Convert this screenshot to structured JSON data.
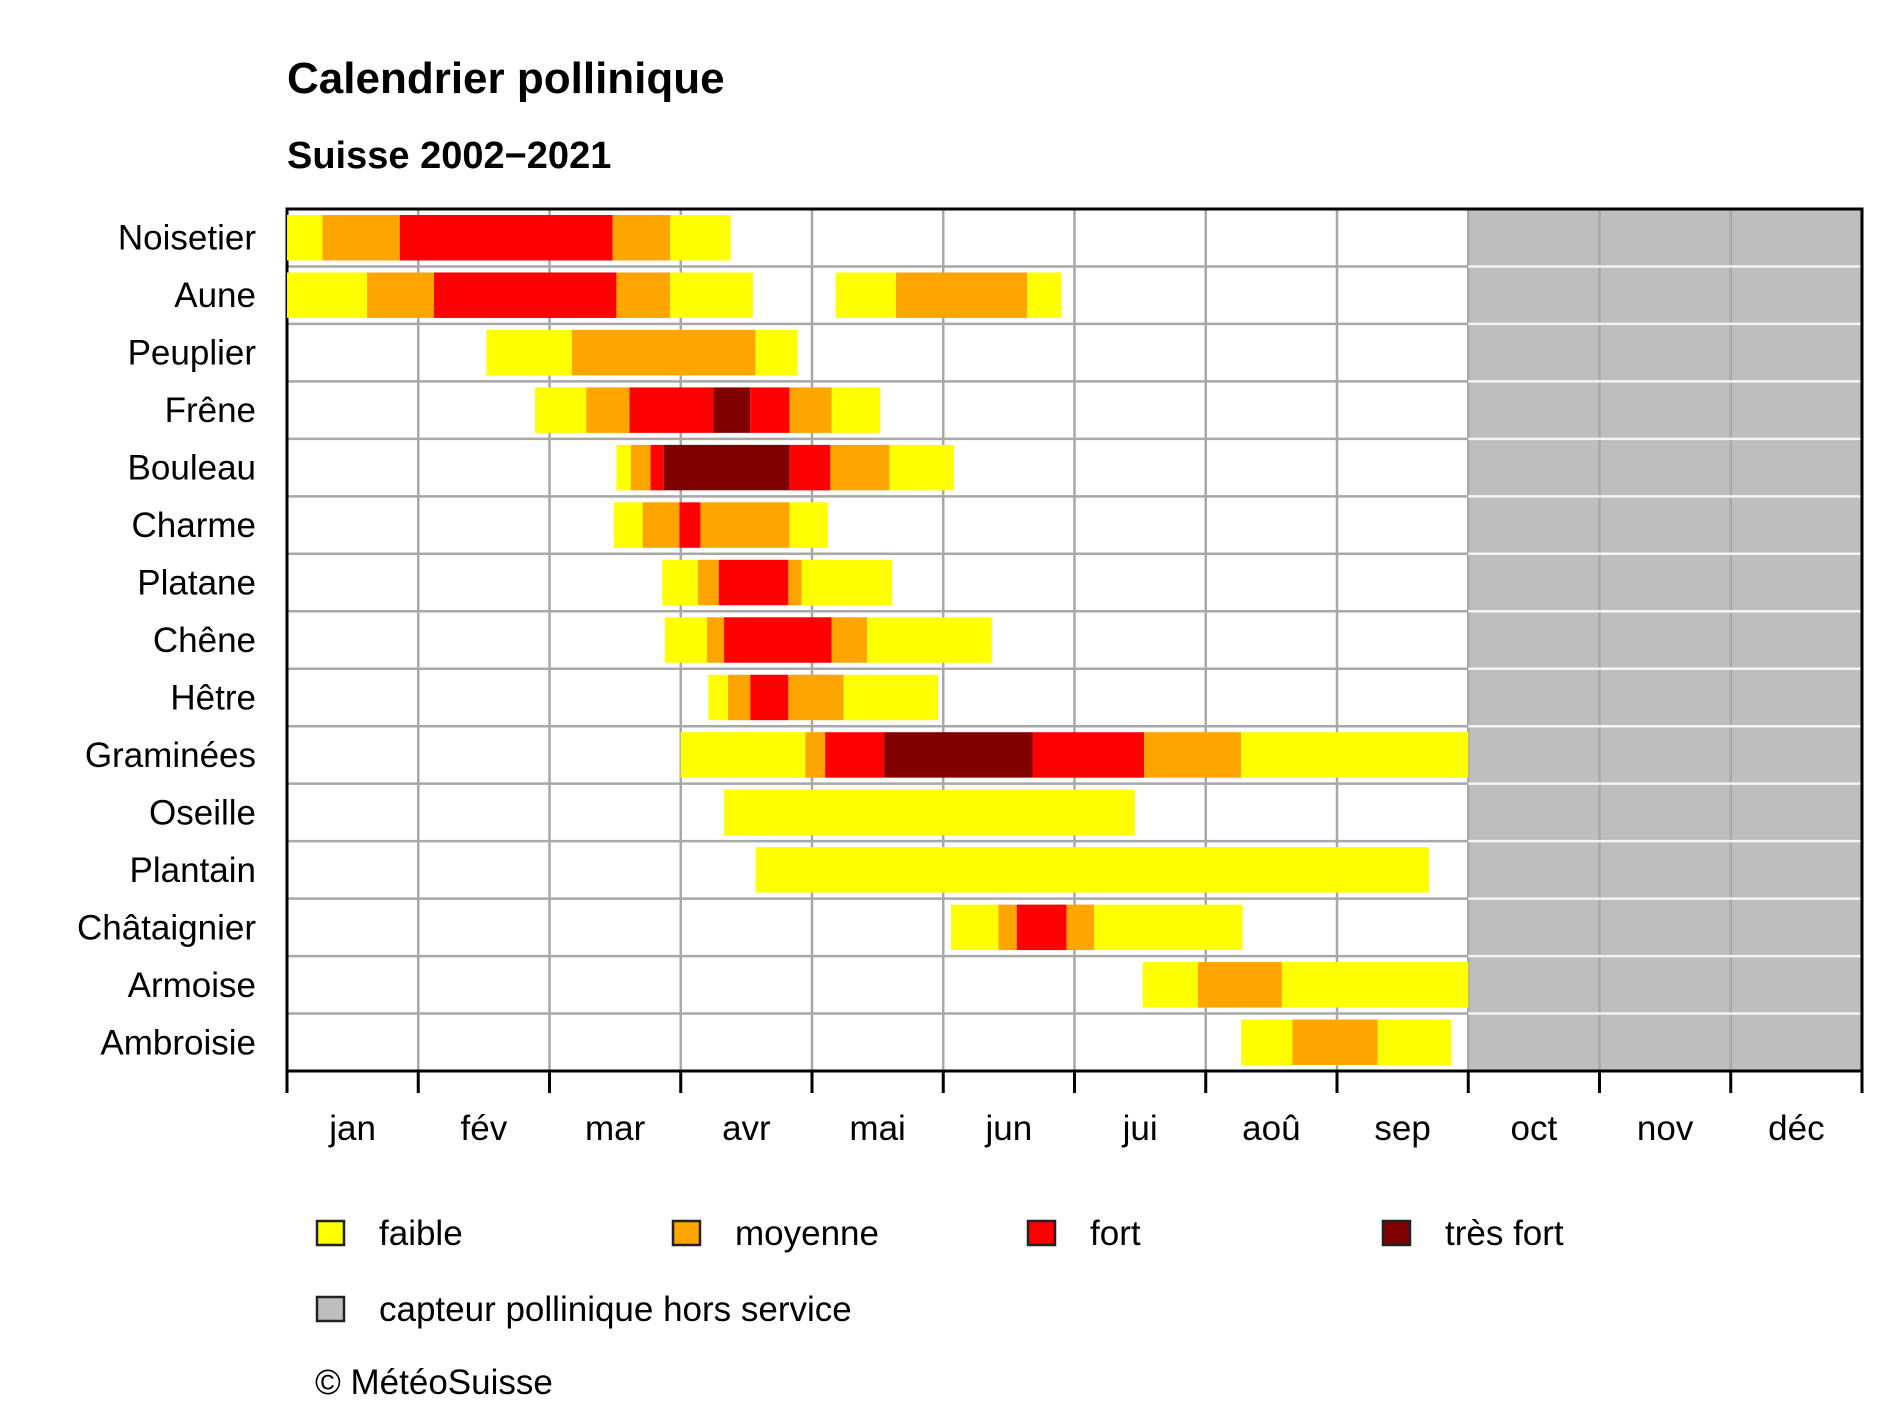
{
  "chart_data": {
    "type": "bar",
    "title": "Calendrier pollinique",
    "subtitle": "Suisse 2002−2021",
    "x_unit": "month",
    "xlim": [
      0,
      12
    ],
    "months": [
      "jan",
      "fév",
      "mar",
      "avr",
      "mai",
      "jun",
      "jui",
      "aoû",
      "sep",
      "oct",
      "nov",
      "déc"
    ],
    "grid": true,
    "out_of_service": {
      "from": 9.0,
      "to": 12.0
    },
    "levels": [
      {
        "key": "faible",
        "label": "faible",
        "color": "#FFFF00"
      },
      {
        "key": "moyenne",
        "label": "moyenne",
        "color": "#FFA500"
      },
      {
        "key": "fort",
        "label": "fort",
        "color": "#FF0000"
      },
      {
        "key": "tres_fort",
        "label": "très fort",
        "color": "#800000"
      },
      {
        "key": "hors_service",
        "label": "capteur pollinique hors service",
        "color": "#BEBEBE"
      }
    ],
    "species": [
      {
        "name": "Noisetier",
        "segments": [
          [
            0.0,
            0.27,
            "faible"
          ],
          [
            0.27,
            0.86,
            "moyenne"
          ],
          [
            0.86,
            2.48,
            "fort"
          ],
          [
            2.48,
            2.92,
            "moyenne"
          ],
          [
            2.92,
            3.38,
            "faible"
          ]
        ]
      },
      {
        "name": "Aune",
        "segments": [
          [
            0.0,
            0.61,
            "faible"
          ],
          [
            0.61,
            1.12,
            "moyenne"
          ],
          [
            1.12,
            2.51,
            "fort"
          ],
          [
            2.51,
            2.92,
            "moyenne"
          ],
          [
            2.92,
            3.55,
            "faible"
          ],
          [
            4.18,
            4.64,
            "faible"
          ],
          [
            4.64,
            5.64,
            "moyenne"
          ],
          [
            5.64,
            5.9,
            "faible"
          ]
        ]
      },
      {
        "name": "Peuplier",
        "segments": [
          [
            1.52,
            2.17,
            "faible"
          ],
          [
            2.17,
            3.57,
            "moyenne"
          ],
          [
            3.57,
            3.89,
            "faible"
          ]
        ]
      },
      {
        "name": "Frêne",
        "segments": [
          [
            1.89,
            2.28,
            "faible"
          ],
          [
            2.28,
            2.61,
            "moyenne"
          ],
          [
            2.61,
            3.25,
            "fort"
          ],
          [
            3.25,
            3.53,
            "tres_fort"
          ],
          [
            3.53,
            3.83,
            "fort"
          ],
          [
            3.83,
            4.15,
            "moyenne"
          ],
          [
            4.15,
            4.52,
            "faible"
          ]
        ]
      },
      {
        "name": "Bouleau",
        "segments": [
          [
            2.51,
            2.62,
            "faible"
          ],
          [
            2.62,
            2.77,
            "moyenne"
          ],
          [
            2.77,
            2.87,
            "fort"
          ],
          [
            2.87,
            3.83,
            "tres_fort"
          ],
          [
            3.83,
            4.14,
            "fort"
          ],
          [
            4.14,
            4.59,
            "moyenne"
          ],
          [
            4.59,
            5.08,
            "faible"
          ]
        ]
      },
      {
        "name": "Charme",
        "segments": [
          [
            2.49,
            2.71,
            "faible"
          ],
          [
            2.71,
            2.99,
            "moyenne"
          ],
          [
            2.99,
            3.15,
            "fort"
          ],
          [
            3.15,
            3.83,
            "moyenne"
          ],
          [
            3.83,
            4.12,
            "faible"
          ]
        ]
      },
      {
        "name": "Platane",
        "segments": [
          [
            2.86,
            3.13,
            "faible"
          ],
          [
            3.13,
            3.29,
            "moyenne"
          ],
          [
            3.29,
            3.82,
            "fort"
          ],
          [
            3.82,
            3.92,
            "moyenne"
          ],
          [
            3.92,
            4.61,
            "faible"
          ]
        ]
      },
      {
        "name": "Chêne",
        "segments": [
          [
            2.88,
            3.2,
            "faible"
          ],
          [
            3.2,
            3.33,
            "moyenne"
          ],
          [
            3.33,
            4.15,
            "fort"
          ],
          [
            4.15,
            4.42,
            "moyenne"
          ],
          [
            4.42,
            5.37,
            "faible"
          ]
        ]
      },
      {
        "name": "Hêtre",
        "segments": [
          [
            3.21,
            3.36,
            "faible"
          ],
          [
            3.36,
            3.53,
            "moyenne"
          ],
          [
            3.53,
            3.82,
            "fort"
          ],
          [
            3.82,
            4.24,
            "moyenne"
          ],
          [
            4.24,
            4.96,
            "faible"
          ]
        ]
      },
      {
        "name": "Graminées",
        "segments": [
          [
            3.0,
            3.95,
            "faible"
          ],
          [
            3.95,
            4.1,
            "moyenne"
          ],
          [
            4.1,
            4.55,
            "fort"
          ],
          [
            4.55,
            5.68,
            "tres_fort"
          ],
          [
            5.68,
            6.53,
            "fort"
          ],
          [
            6.53,
            7.27,
            "moyenne"
          ],
          [
            7.27,
            9.0,
            "faible"
          ]
        ]
      },
      {
        "name": "Oseille",
        "segments": [
          [
            3.33,
            6.46,
            "faible"
          ]
        ]
      },
      {
        "name": "Plantain",
        "segments": [
          [
            3.57,
            8.7,
            "faible"
          ]
        ]
      },
      {
        "name": "Châtaignier",
        "segments": [
          [
            5.06,
            5.42,
            "faible"
          ],
          [
            5.42,
            5.56,
            "moyenne"
          ],
          [
            5.56,
            5.94,
            "fort"
          ],
          [
            5.94,
            6.15,
            "moyenne"
          ],
          [
            6.15,
            7.28,
            "faible"
          ]
        ]
      },
      {
        "name": "Armoise",
        "segments": [
          [
            6.52,
            6.94,
            "faible"
          ],
          [
            6.94,
            7.58,
            "moyenne"
          ],
          [
            7.58,
            9.0,
            "faible"
          ]
        ]
      },
      {
        "name": "Ambroisie",
        "segments": [
          [
            7.27,
            7.66,
            "faible"
          ],
          [
            7.66,
            8.31,
            "moyenne"
          ],
          [
            8.31,
            8.87,
            "faible"
          ]
        ]
      }
    ]
  },
  "copyright": "© MétéoSuisse"
}
